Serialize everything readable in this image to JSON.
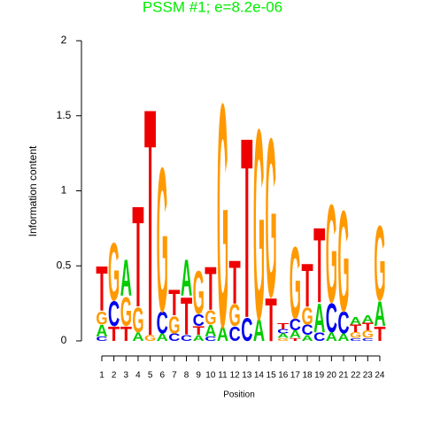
{
  "chart_data": {
    "type": "logo",
    "title": "PSSM #1; e=8.2e-06",
    "x_label": "Position",
    "y_label": "Information content",
    "categories": [
      "1",
      "2",
      "3",
      "4",
      "5",
      "6",
      "7",
      "8",
      "9",
      "10",
      "11",
      "12",
      "13",
      "14",
      "15",
      "16",
      "17",
      "18",
      "19",
      "20",
      "21",
      "22",
      "23",
      "24"
    ],
    "ylim": [
      0,
      2
    ],
    "yticks": [
      0,
      0.5,
      1,
      1.5,
      2
    ],
    "colors": {
      "A": "#00cc00",
      "C": "#0000ee",
      "G": "#ff9900",
      "T": "#ee0000"
    },
    "stacks": [
      {
        "letters": [
          "C",
          "A",
          "G",
          "T"
        ],
        "heights": [
          0.03,
          0.08,
          0.09,
          0.31
        ]
      },
      {
        "letters": [
          "T",
          "C",
          "G"
        ],
        "heights": [
          0.1,
          0.17,
          0.4
        ]
      },
      {
        "letters": [
          "T",
          "G",
          "A"
        ],
        "heights": [
          0.1,
          0.2,
          0.25
        ]
      },
      {
        "letters": [
          "A",
          "G",
          "T"
        ],
        "heights": [
          0.06,
          0.17,
          0.7
        ]
      },
      {
        "letters": [
          "G",
          "T"
        ],
        "heights": [
          0.04,
          1.58
        ]
      },
      {
        "letters": [
          "A",
          "C",
          "G"
        ],
        "heights": [
          0.05,
          0.15,
          1.0
        ]
      },
      {
        "letters": [
          "C",
          "G",
          "T"
        ],
        "heights": [
          0.05,
          0.12,
          0.18
        ]
      },
      {
        "letters": [
          "C",
          "T",
          "A"
        ],
        "heights": [
          0.04,
          0.26,
          0.25
        ]
      },
      {
        "letters": [
          "A",
          "T",
          "C",
          "G"
        ],
        "heights": [
          0.04,
          0.06,
          0.08,
          0.3
        ]
      },
      {
        "letters": [
          "C",
          "A",
          "G",
          "T"
        ],
        "heights": [
          0.03,
          0.08,
          0.1,
          0.3
        ]
      },
      {
        "letters": [
          "A",
          "G"
        ],
        "heights": [
          0.1,
          1.55
        ]
      },
      {
        "letters": [
          "C",
          "G",
          "T"
        ],
        "heights": [
          0.1,
          0.15,
          0.3
        ]
      },
      {
        "letters": [
          "C",
          "T"
        ],
        "heights": [
          0.16,
          1.25
        ]
      },
      {
        "letters": [
          "A",
          "G"
        ],
        "heights": [
          0.15,
          1.32
        ]
      },
      {
        "letters": [
          "T",
          "G"
        ],
        "heights": [
          0.3,
          1.1
        ]
      },
      {
        "letters": [
          "G",
          "A",
          "C",
          "T"
        ],
        "heights": [
          0.02,
          0.03,
          0.03,
          0.04
        ]
      },
      {
        "letters": [
          "T",
          "A",
          "C",
          "G"
        ],
        "heights": [
          0.02,
          0.05,
          0.08,
          0.5
        ]
      },
      {
        "letters": [
          "A",
          "C",
          "G",
          "T"
        ],
        "heights": [
          0.04,
          0.07,
          0.12,
          0.3
        ]
      },
      {
        "letters": [
          "C",
          "A",
          "T"
        ],
        "heights": [
          0.06,
          0.2,
          0.52
        ]
      },
      {
        "letters": [
          "A",
          "C",
          "G"
        ],
        "heights": [
          0.06,
          0.2,
          0.68
        ]
      },
      {
        "letters": [
          "A",
          "C",
          "G"
        ],
        "heights": [
          0.05,
          0.15,
          0.7
        ]
      },
      {
        "letters": [
          "C",
          "G",
          "T",
          "A"
        ],
        "heights": [
          0.02,
          0.04,
          0.05,
          0.05
        ]
      },
      {
        "letters": [
          "C",
          "G",
          "T",
          "A"
        ],
        "heights": [
          0.02,
          0.05,
          0.05,
          0.05
        ]
      },
      {
        "letters": [
          "T",
          "A",
          "G"
        ],
        "heights": [
          0.1,
          0.17,
          0.52
        ]
      }
    ]
  }
}
